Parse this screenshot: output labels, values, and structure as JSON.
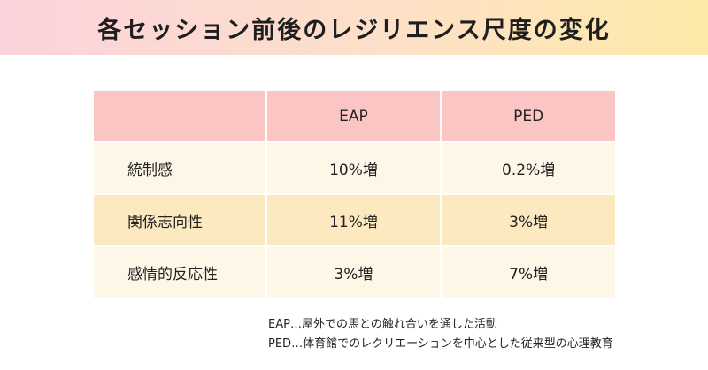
{
  "title": "各セッション前後のレジリエンス尺度の変化",
  "table": {
    "headers": [
      "",
      "EAP",
      "PED"
    ],
    "rows": [
      {
        "label": "統制感",
        "eap": "10%増",
        "ped": "0.2%増"
      },
      {
        "label": "関係志向性",
        "eap": "11%増",
        "ped": "3%増"
      },
      {
        "label": "感情的反応性",
        "eap": "3%増",
        "ped": "7%増"
      }
    ]
  },
  "notes": [
    "EAP…屋外での馬との触れ合いを通した活動",
    "PED…体育館でのレクリエーションを中心とした従来型の心理教育"
  ],
  "colors": {
    "header_bg_start": "#fbd3dc",
    "header_bg_end": "#fdeaa8",
    "table_header_bg": "#fbc5c3",
    "row_light_bg": "#fef6e7",
    "row_dark_bg": "#fde9bf"
  }
}
